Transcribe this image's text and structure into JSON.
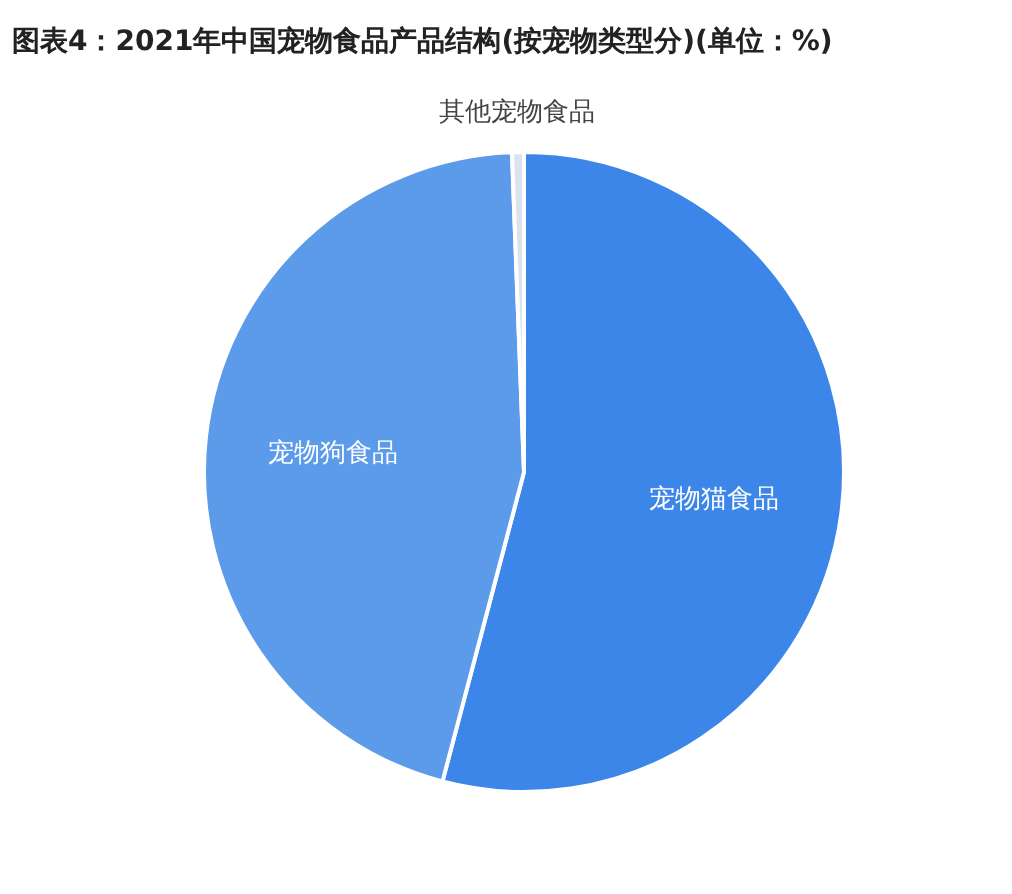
{
  "chart_data": {
    "type": "pie",
    "title": "图表4：2021年中国宠物食品产品结构(按宠物类型分)(单位：%)",
    "categories": [
      "宠物猫食品",
      "宠物狗食品",
      "其他宠物食品"
    ],
    "values": [
      54.1,
      45.3,
      0.6
    ],
    "colors": [
      "#3b86e8",
      "#5b9be9",
      "#dce3ee"
    ]
  }
}
